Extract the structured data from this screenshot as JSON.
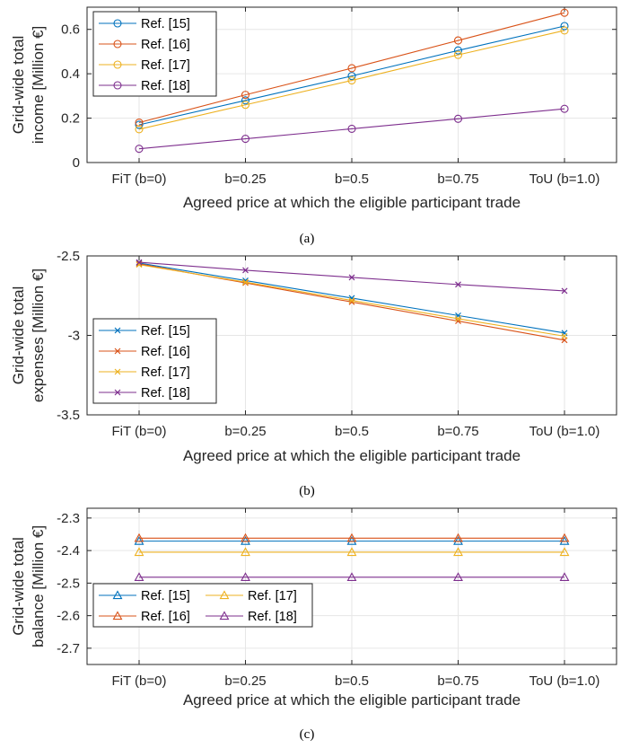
{
  "chart_data": [
    {
      "type": "line",
      "panel_label": "(a)",
      "marker": "circle",
      "xlabel": "Agreed price at which the eligible participant trade",
      "ylabel_lines": [
        "Grid-wide total",
        "income [Million €]"
      ],
      "categories": [
        "FiT (b=0)",
        "b=0.25",
        "b=0.5",
        "b=0.75",
        "ToU (b=1.0)"
      ],
      "ylim": [
        0,
        0.7
      ],
      "yticks": [
        0,
        0.2,
        0.4,
        0.6
      ],
      "ytick_labels": [
        "0",
        "0.2",
        "0.4",
        "0.6"
      ],
      "grid": true,
      "legend": {
        "placement": "top-left",
        "columns": 1
      },
      "series": [
        {
          "name": "Ref. [15]",
          "color": "#0072BD",
          "values": [
            0.17,
            0.28,
            0.39,
            0.505,
            0.615
          ]
        },
        {
          "name": "Ref. [16]",
          "color": "#D95319",
          "values": [
            0.18,
            0.305,
            0.425,
            0.55,
            0.675
          ]
        },
        {
          "name": "Ref. [17]",
          "color": "#EDB120",
          "values": [
            0.15,
            0.26,
            0.37,
            0.485,
            0.595
          ]
        },
        {
          "name": "Ref. [18]",
          "color": "#7E2F8E",
          "values": [
            0.062,
            0.107,
            0.152,
            0.197,
            0.242
          ]
        }
      ]
    },
    {
      "type": "line",
      "panel_label": "(b)",
      "marker": "x",
      "xlabel": "Agreed price at which the eligible participant trade",
      "ylabel_lines": [
        "Grid-wide total",
        "expenses [Million €]"
      ],
      "categories": [
        "FiT (b=0)",
        "b=0.25",
        "b=0.5",
        "b=0.75",
        "ToU (b=1.0)"
      ],
      "ylim": [
        -3.5,
        -2.5
      ],
      "yticks": [
        -3.5,
        -3,
        -2.5
      ],
      "ytick_labels": [
        "-3.5",
        "-3",
        "-2.5"
      ],
      "grid": true,
      "legend": {
        "placement": "bottom-left",
        "columns": 1
      },
      "series": [
        {
          "name": "Ref. [15]",
          "color": "#0072BD",
          "values": [
            -2.545,
            -2.655,
            -2.765,
            -2.875,
            -2.985
          ]
        },
        {
          "name": "Ref. [16]",
          "color": "#D95319",
          "values": [
            -2.55,
            -2.67,
            -2.79,
            -2.91,
            -3.03
          ]
        },
        {
          "name": "Ref. [17]",
          "color": "#EDB120",
          "values": [
            -2.555,
            -2.665,
            -2.78,
            -2.895,
            -3.005
          ]
        },
        {
          "name": "Ref. [18]",
          "color": "#7E2F8E",
          "values": [
            -2.54,
            -2.59,
            -2.635,
            -2.68,
            -2.72
          ]
        }
      ]
    },
    {
      "type": "line",
      "panel_label": "(c)",
      "marker": "triangle",
      "xlabel": "Agreed price at which the eligible participant trade",
      "ylabel_lines": [
        "Grid-wide total",
        "balance [Million €]"
      ],
      "categories": [
        "FiT (b=0)",
        "b=0.25",
        "b=0.5",
        "b=0.75",
        "ToU (b=1.0)"
      ],
      "ylim": [
        -2.75,
        -2.27
      ],
      "yticks": [
        -2.7,
        -2.6,
        -2.5,
        -2.4,
        -2.3
      ],
      "ytick_labels": [
        "-2.7",
        "-2.6",
        "-2.5",
        "-2.4",
        "-2.3"
      ],
      "grid": true,
      "legend": {
        "placement": "bottom-left",
        "columns": 2
      },
      "series": [
        {
          "name": "Ref. [15]",
          "color": "#0072BD",
          "values": [
            -2.371,
            -2.371,
            -2.371,
            -2.371,
            -2.371
          ]
        },
        {
          "name": "Ref. [16]",
          "color": "#D95319",
          "values": [
            -2.362,
            -2.362,
            -2.362,
            -2.362,
            -2.362
          ]
        },
        {
          "name": "Ref. [17]",
          "color": "#EDB120",
          "values": [
            -2.405,
            -2.405,
            -2.405,
            -2.405,
            -2.405
          ]
        },
        {
          "name": "Ref. [18]",
          "color": "#7E2F8E",
          "values": [
            -2.482,
            -2.482,
            -2.482,
            -2.482,
            -2.482
          ]
        }
      ]
    }
  ]
}
